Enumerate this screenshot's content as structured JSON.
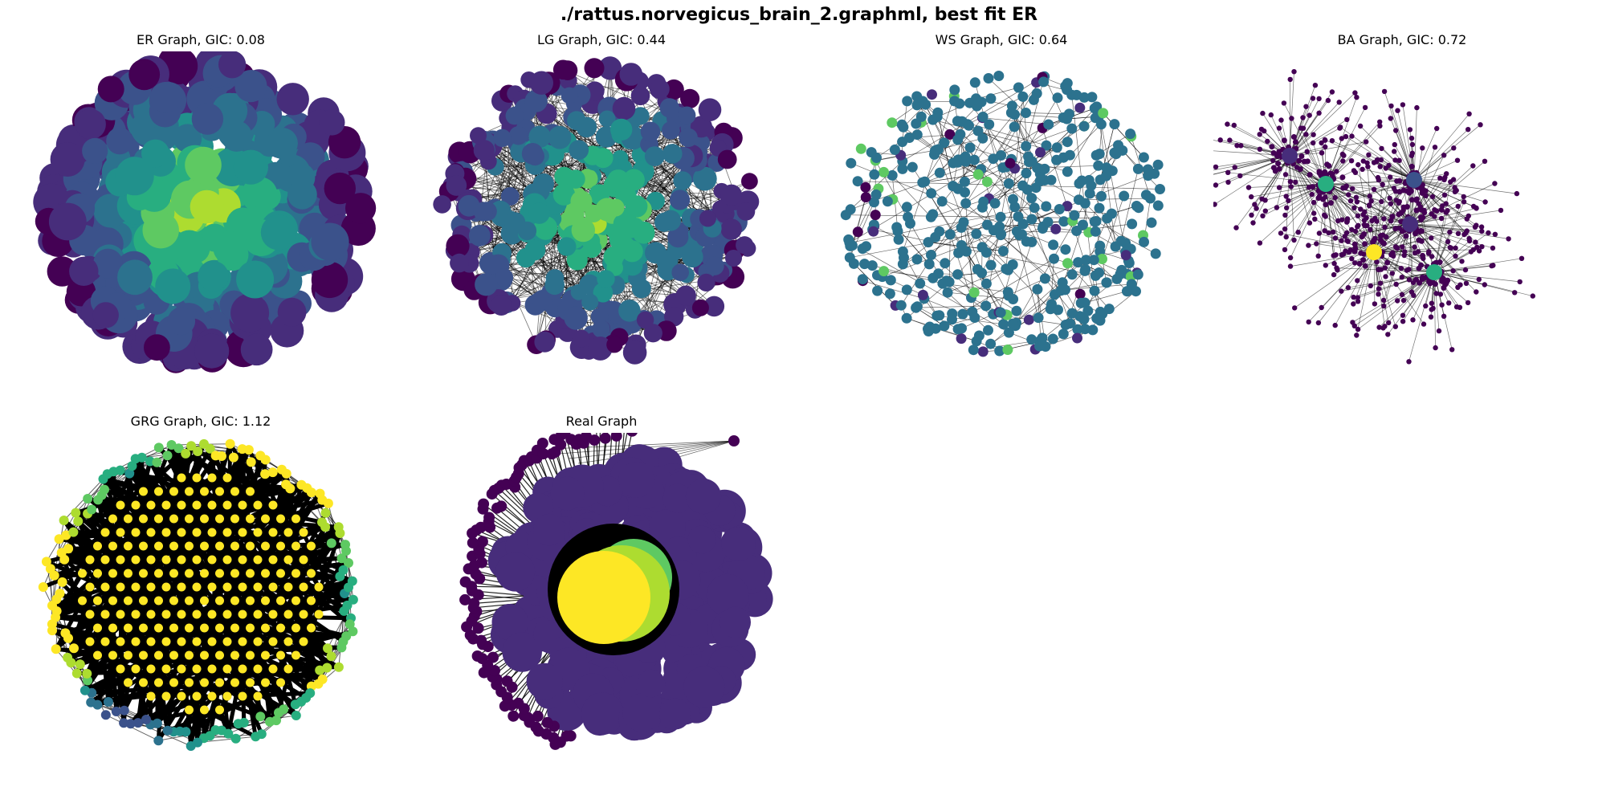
{
  "figure": {
    "title": "./rattus.norvegicus_brain_2.graphml, best fit ER"
  },
  "panels": [
    {
      "title": "ER Graph, GIC: 0.08",
      "layout": "dense-ball",
      "node_count": 420,
      "seed": 11
    },
    {
      "title": "LG Graph, GIC: 0.44",
      "layout": "dense-ball-edges",
      "node_count": 380,
      "seed": 23
    },
    {
      "title": "WS Graph, GIC: 0.64",
      "layout": "mesh",
      "node_count": 430,
      "seed": 37
    },
    {
      "title": "BA Graph, GIC: 0.72",
      "layout": "hubs",
      "node_count": 500,
      "seed": 53
    },
    {
      "title": "GRG Graph, GIC: 1.12",
      "layout": "grid",
      "node_count": 420,
      "seed": 71
    },
    {
      "title": "Real Graph",
      "layout": "core-periphery",
      "node_count": 400,
      "seed": 89
    }
  ],
  "colormap": [
    "#440154",
    "#472d7b",
    "#3b528b",
    "#2c728e",
    "#21918c",
    "#28ae80",
    "#5ec962",
    "#addc30",
    "#fde725"
  ]
}
